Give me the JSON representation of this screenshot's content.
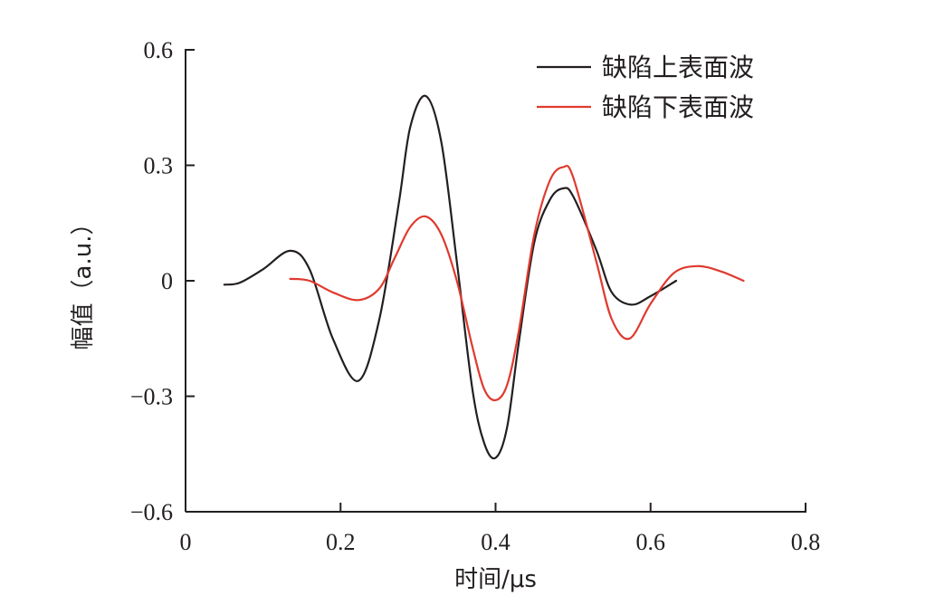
{
  "chart_data": {
    "type": "line",
    "title": "",
    "xlabel": "时间/μs",
    "ylabel": "幅值（a.u.）",
    "xlim": [
      0,
      0.8
    ],
    "ylim": [
      -0.6,
      0.6
    ],
    "x_ticks": [
      0,
      0.2,
      0.4,
      0.6,
      0.8
    ],
    "x_tick_labels": [
      "0",
      "0.2",
      "0.4",
      "0.6",
      "0.8"
    ],
    "y_ticks": [
      0.6,
      0.3,
      0,
      -0.3,
      -0.6
    ],
    "y_tick_labels": [
      "0.6",
      "0.3",
      "0",
      "−0.3",
      "−0.6"
    ],
    "grid": false,
    "legend": "top-right",
    "series": [
      {
        "name": "缺陷上表面波",
        "color": "#231f20",
        "x": [
          0.05,
          0.07,
          0.1,
          0.135,
          0.16,
          0.19,
          0.223,
          0.25,
          0.275,
          0.29,
          0.31,
          0.33,
          0.35,
          0.37,
          0.385,
          0.4,
          0.415,
          0.43,
          0.45,
          0.47,
          0.487,
          0.5,
          0.53,
          0.55,
          0.575,
          0.6,
          0.633
        ],
        "values": [
          -0.01,
          -0.005,
          0.03,
          0.078,
          0.03,
          -0.15,
          -0.26,
          -0.1,
          0.2,
          0.4,
          0.48,
          0.36,
          0.05,
          -0.28,
          -0.42,
          -0.46,
          -0.38,
          -0.16,
          0.1,
          0.21,
          0.24,
          0.22,
          0.08,
          -0.03,
          -0.062,
          -0.04,
          0.0
        ]
      },
      {
        "name": "缺陷下表面波",
        "color": "#e03a2e",
        "x": [
          0.135,
          0.16,
          0.19,
          0.223,
          0.25,
          0.27,
          0.29,
          0.31,
          0.33,
          0.35,
          0.37,
          0.385,
          0.4,
          0.415,
          0.43,
          0.45,
          0.47,
          0.487,
          0.5,
          0.53,
          0.55,
          0.573,
          0.6,
          0.63,
          0.66,
          0.69,
          0.72
        ],
        "values": [
          0.005,
          0.0,
          -0.03,
          -0.05,
          -0.02,
          0.06,
          0.14,
          0.167,
          0.12,
          0.0,
          -0.17,
          -0.28,
          -0.31,
          -0.27,
          -0.13,
          0.12,
          0.26,
          0.295,
          0.27,
          0.05,
          -0.1,
          -0.15,
          -0.06,
          0.02,
          0.038,
          0.025,
          0.0
        ]
      }
    ]
  }
}
